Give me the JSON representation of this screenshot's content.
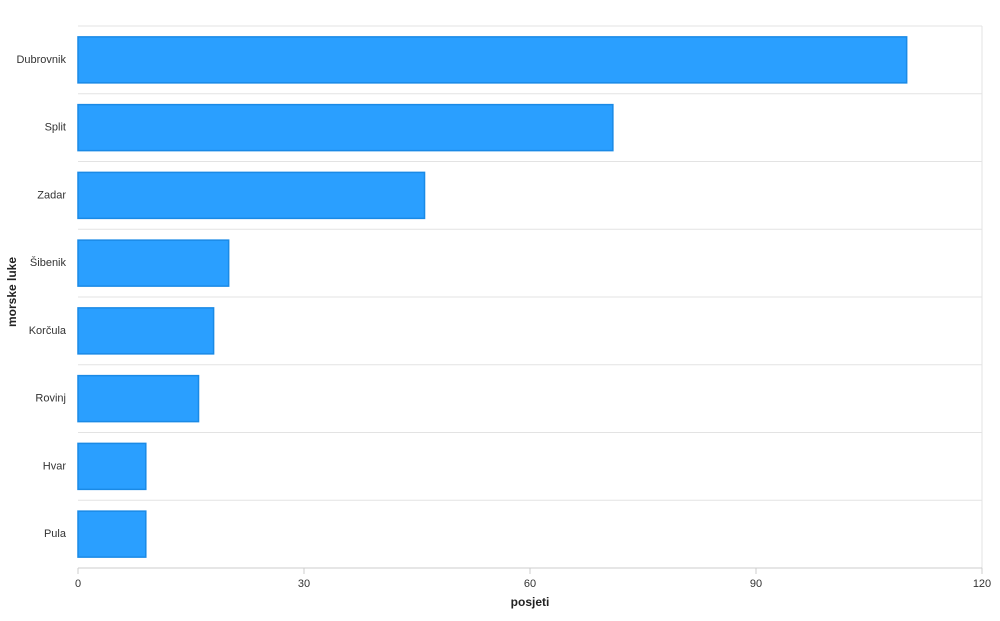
{
  "chart_data": {
    "type": "hbar",
    "categories": [
      "Dubrovnik",
      "Split",
      "Zadar",
      "Šibenik",
      "Korčula",
      "Rovinj",
      "Hvar",
      "Pula"
    ],
    "values": [
      110,
      71,
      46,
      20,
      18,
      16,
      9,
      9
    ],
    "color": "#2a9fff",
    "xlim": [
      0,
      120
    ],
    "xticks": [
      0,
      30,
      60,
      90,
      120
    ],
    "xlabel": "posjeti",
    "ylabel": "morske luke",
    "grid": true
  }
}
